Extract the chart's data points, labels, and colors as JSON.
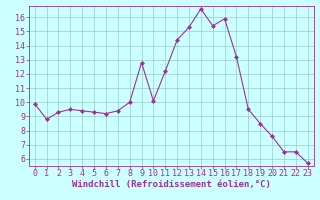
{
  "x": [
    0,
    1,
    2,
    3,
    4,
    5,
    6,
    7,
    8,
    9,
    10,
    11,
    12,
    13,
    14,
    15,
    16,
    17,
    18,
    19,
    20,
    21,
    22,
    23
  ],
  "y": [
    9.9,
    8.8,
    9.3,
    9.5,
    9.4,
    9.3,
    9.2,
    9.4,
    10.0,
    12.8,
    10.1,
    12.2,
    14.4,
    15.3,
    16.6,
    15.4,
    15.9,
    13.2,
    9.5,
    8.5,
    7.6,
    6.5,
    6.5,
    5.7
  ],
  "line_color": "#993399",
  "marker": "D",
  "marker_size": 2,
  "background_color": "#ccffff",
  "grid_color": "#99cccc",
  "xlabel": "Windchill (Refroidissement éolien,°C)",
  "xlabel_color": "#993399",
  "tick_color": "#993399",
  "spine_color": "#993399",
  "ylim": [
    5.5,
    16.8
  ],
  "yticks": [
    6,
    7,
    8,
    9,
    10,
    11,
    12,
    13,
    14,
    15,
    16
  ],
  "xlim": [
    -0.5,
    23.5
  ],
  "xticks": [
    0,
    1,
    2,
    3,
    4,
    5,
    6,
    7,
    8,
    9,
    10,
    11,
    12,
    13,
    14,
    15,
    16,
    17,
    18,
    19,
    20,
    21,
    22,
    23
  ],
  "tick_fontsize": 6,
  "xlabel_fontsize": 6.5
}
